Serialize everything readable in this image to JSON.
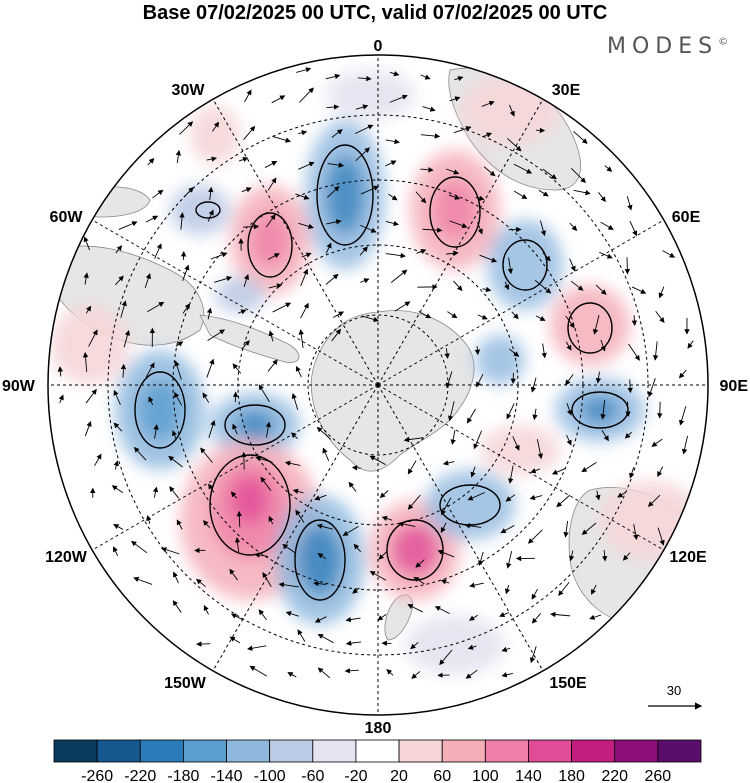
{
  "title": "Base 07/02/2025 00 UTC, valid 07/02/2025 00 UTC",
  "logo": "MODES",
  "logo_mark": "©",
  "longitude_labels": {
    "top": "0",
    "bottom": "180",
    "left": "90W",
    "right": "90E",
    "w30": "30W",
    "e30": "30E",
    "w60": "60W",
    "e60": "60E",
    "w120": "120W",
    "e120": "120E",
    "w150": "150W",
    "e150": "150E"
  },
  "vector_reference": "30",
  "colorbar": {
    "colors": [
      "#0a3a5e",
      "#15578f",
      "#2b7bb9",
      "#5a9dcf",
      "#8fb8de",
      "#bccbe5",
      "#e3e3f1",
      "#ffffff",
      "#f6d6d8",
      "#f4aeb8",
      "#ef7fa8",
      "#e14b98",
      "#c41d80",
      "#8e0f79",
      "#5a0e6b"
    ],
    "tick_labels": [
      "-260",
      "-220",
      "-180",
      "-140",
      "-100",
      "-60",
      "-20",
      "20",
      "60",
      "100",
      "140",
      "180",
      "220",
      "260"
    ]
  },
  "colors": {
    "ocean": "#ffffff",
    "land": "#e6e6e6",
    "grid": "#000000"
  }
}
